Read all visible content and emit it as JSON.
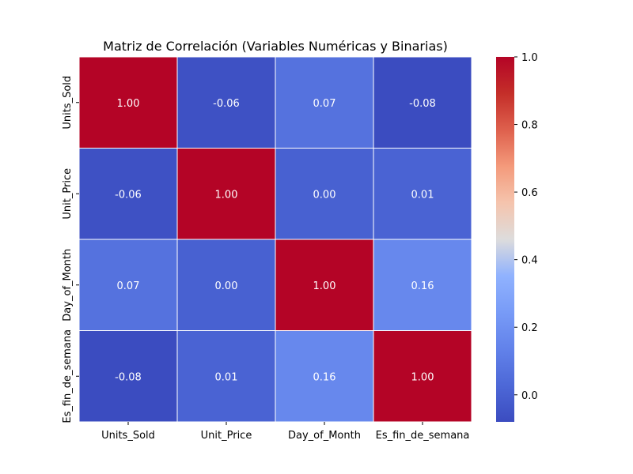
{
  "chart_data": {
    "type": "heatmap",
    "title": "Matriz de Correlación (Variables Numéricas y Binarias)",
    "xlabel": "",
    "ylabel": "",
    "row_labels": [
      "Units_Sold",
      "Unit_Price",
      "Day_of_Month",
      "Es_fin_de_semana"
    ],
    "col_labels": [
      "Units_Sold",
      "Unit_Price",
      "Day_of_Month",
      "Es_fin_de_semana"
    ],
    "values": [
      [
        1.0,
        -0.06,
        0.07,
        -0.08
      ],
      [
        -0.06,
        1.0,
        -0.0,
        0.01
      ],
      [
        0.07,
        -0.0,
        1.0,
        0.16
      ],
      [
        -0.08,
        0.01,
        0.16,
        1.0
      ]
    ],
    "value_format": "0.00",
    "colorscale": "coolwarm",
    "colorbar": {
      "range": [
        -0.08,
        1.0
      ],
      "ticks": [
        0.0,
        0.2,
        0.4,
        0.6,
        0.8,
        1.0
      ],
      "tick_labels": [
        "0.0",
        "0.2",
        "0.4",
        "0.6",
        "0.8",
        "1.0"
      ]
    },
    "grid": true,
    "legend": "right"
  }
}
